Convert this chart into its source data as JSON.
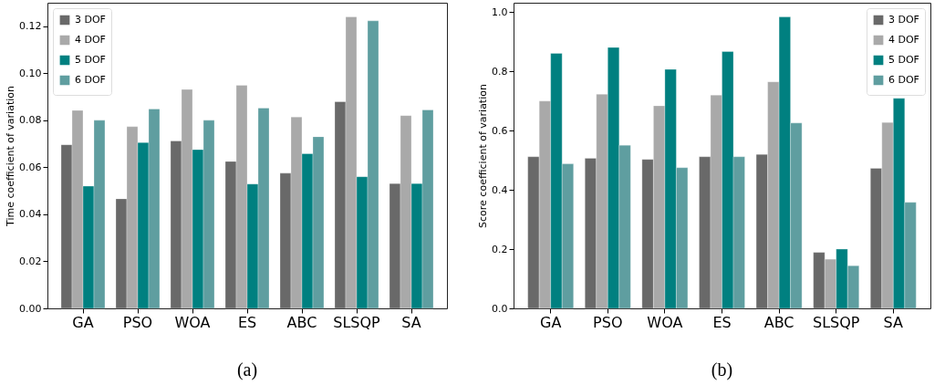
{
  "chart_data": [
    {
      "type": "bar",
      "ylabel": "Time coefficient of variation",
      "categories": [
        "GA",
        "PSO",
        "WOA",
        "ES",
        "ABC",
        "SLSQP",
        "SA"
      ],
      "series": [
        {
          "name": "3 DOF",
          "color": "#696969",
          "values": [
            0.0696,
            0.0466,
            0.0712,
            0.0625,
            0.0575,
            0.0879,
            0.0531
          ]
        },
        {
          "name": "4 DOF",
          "color": "#a9a9a9",
          "values": [
            0.0842,
            0.0773,
            0.0931,
            0.0949,
            0.0814,
            0.124,
            0.082
          ]
        },
        {
          "name": "5 DOF",
          "color": "#008080",
          "values": [
            0.052,
            0.0705,
            0.0675,
            0.0529,
            0.0658,
            0.056,
            0.0531
          ]
        },
        {
          "name": "6 DOF",
          "color": "#5f9ea0",
          "values": [
            0.08,
            0.0848,
            0.08,
            0.0852,
            0.073,
            0.1223,
            0.0844
          ]
        }
      ],
      "ylim": [
        0,
        0.13
      ],
      "yticks": [
        {
          "value": 0,
          "label": "0.00"
        },
        {
          "value": 0.02,
          "label": "0.02"
        },
        {
          "value": 0.04,
          "label": "0.04"
        },
        {
          "value": 0.06,
          "label": "0.06"
        },
        {
          "value": 0.08,
          "label": "0.08"
        },
        {
          "value": 0.1,
          "label": "0.10"
        },
        {
          "value": 0.12,
          "label": "0.12"
        }
      ],
      "grid": false,
      "legend": "top left",
      "annotations": [
        "(a)"
      ]
    },
    {
      "type": "bar",
      "ylabel": "Score coefficient of variation",
      "categories": [
        "GA",
        "PSO",
        "WOA",
        "ES",
        "ABC",
        "SLSQP",
        "SA"
      ],
      "series": [
        {
          "name": "3 DOF",
          "color": "#696969",
          "values": [
            0.512,
            0.507,
            0.503,
            0.512,
            0.52,
            0.189,
            0.473
          ]
        },
        {
          "name": "4 DOF",
          "color": "#a9a9a9",
          "values": [
            0.7,
            0.723,
            0.684,
            0.72,
            0.765,
            0.166,
            0.628
          ]
        },
        {
          "name": "5 DOF",
          "color": "#008080",
          "values": [
            0.861,
            0.881,
            0.807,
            0.867,
            0.984,
            0.2,
            0.709
          ]
        },
        {
          "name": "6 DOF",
          "color": "#5f9ea0",
          "values": [
            0.488,
            0.551,
            0.475,
            0.512,
            0.626,
            0.144,
            0.358
          ]
        }
      ],
      "ylim": [
        0,
        1.032
      ],
      "yticks": [
        {
          "value": 0,
          "label": "0.0"
        },
        {
          "value": 0.2,
          "label": "0.2"
        },
        {
          "value": 0.4,
          "label": "0.4"
        },
        {
          "value": 0.6,
          "label": "0.6"
        },
        {
          "value": 0.8,
          "label": "0.8"
        },
        {
          "value": 1,
          "label": "1.0"
        }
      ],
      "grid": false,
      "legend": "top right",
      "annotations": [
        "(b)"
      ]
    }
  ]
}
